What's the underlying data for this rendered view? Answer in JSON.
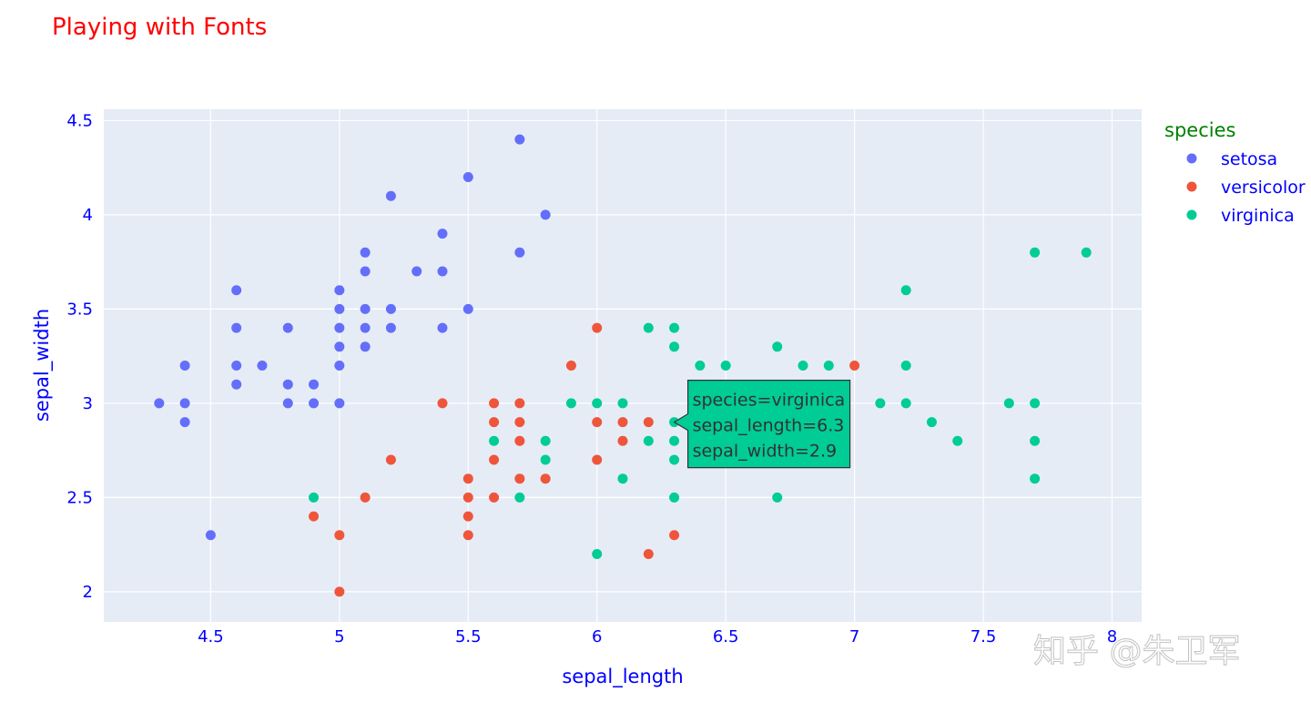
{
  "chart_data": {
    "type": "scatter",
    "title": "Playing with Fonts",
    "xlabel": "sepal_length",
    "ylabel": "sepal_width",
    "xlim": [
      4.085,
      8.115
    ],
    "ylim": [
      1.84,
      4.56
    ],
    "x_ticks": [
      "4.5",
      "5",
      "5.5",
      "6",
      "6.5",
      "7",
      "7.5",
      "8"
    ],
    "y_ticks": [
      "2",
      "2.5",
      "3",
      "3.5",
      "4",
      "4.5"
    ],
    "grid": true,
    "legend_title": "species",
    "legend_position": "right",
    "colors": {
      "title": "#ff0000",
      "axes": "#0000ff",
      "legend_title": "#008000",
      "legend_items": "#0000ff",
      "plot_bg": "#e5ecf6",
      "grid": "#ffffff"
    },
    "series": [
      {
        "name": "setosa",
        "color": "#636efa",
        "points": [
          [
            4.3,
            3.0
          ],
          [
            4.4,
            3.2
          ],
          [
            4.4,
            3.0
          ],
          [
            4.4,
            2.9
          ],
          [
            4.5,
            2.3
          ],
          [
            4.6,
            3.6
          ],
          [
            4.6,
            3.4
          ],
          [
            4.6,
            3.2
          ],
          [
            4.6,
            3.1
          ],
          [
            4.7,
            3.2
          ],
          [
            4.8,
            3.4
          ],
          [
            4.8,
            3.1
          ],
          [
            4.8,
            3.0
          ],
          [
            4.9,
            3.1
          ],
          [
            4.9,
            3.0
          ],
          [
            5.0,
            3.6
          ],
          [
            5.0,
            3.5
          ],
          [
            5.0,
            3.4
          ],
          [
            5.0,
            3.3
          ],
          [
            5.0,
            3.2
          ],
          [
            5.0,
            3.0
          ],
          [
            5.1,
            3.8
          ],
          [
            5.1,
            3.7
          ],
          [
            5.1,
            3.5
          ],
          [
            5.1,
            3.4
          ],
          [
            5.1,
            3.3
          ],
          [
            5.2,
            4.1
          ],
          [
            5.2,
            3.5
          ],
          [
            5.2,
            3.4
          ],
          [
            5.3,
            3.7
          ],
          [
            5.4,
            3.9
          ],
          [
            5.4,
            3.7
          ],
          [
            5.4,
            3.4
          ],
          [
            5.5,
            4.2
          ],
          [
            5.5,
            3.5
          ],
          [
            5.7,
            4.4
          ],
          [
            5.7,
            3.8
          ],
          [
            5.8,
            4.0
          ]
        ]
      },
      {
        "name": "versicolor",
        "color": "#ef553b",
        "points": [
          [
            4.9,
            2.4
          ],
          [
            5.0,
            2.3
          ],
          [
            5.0,
            2.0
          ],
          [
            5.1,
            2.5
          ],
          [
            5.2,
            2.7
          ],
          [
            5.4,
            3.0
          ],
          [
            5.5,
            2.6
          ],
          [
            5.5,
            2.5
          ],
          [
            5.5,
            2.4
          ],
          [
            5.5,
            2.3
          ],
          [
            5.6,
            3.0
          ],
          [
            5.6,
            2.9
          ],
          [
            5.6,
            2.7
          ],
          [
            5.6,
            2.5
          ],
          [
            5.7,
            3.0
          ],
          [
            5.7,
            2.9
          ],
          [
            5.7,
            2.8
          ],
          [
            5.7,
            2.6
          ],
          [
            5.8,
            2.6
          ],
          [
            5.9,
            3.2
          ],
          [
            6.0,
            3.4
          ],
          [
            6.0,
            2.9
          ],
          [
            6.0,
            2.7
          ],
          [
            6.1,
            2.9
          ],
          [
            6.1,
            2.8
          ],
          [
            6.2,
            2.9
          ],
          [
            6.2,
            2.2
          ],
          [
            6.3,
            2.3
          ],
          [
            7.0,
            3.2
          ]
        ]
      },
      {
        "name": "virginica",
        "color": "#00cc96",
        "points": [
          [
            4.9,
            2.5
          ],
          [
            5.6,
            2.8
          ],
          [
            5.7,
            2.5
          ],
          [
            5.8,
            2.8
          ],
          [
            5.8,
            2.7
          ],
          [
            5.9,
            3.0
          ],
          [
            6.0,
            3.0
          ],
          [
            6.0,
            2.2
          ],
          [
            6.1,
            3.0
          ],
          [
            6.1,
            2.6
          ],
          [
            6.2,
            3.4
          ],
          [
            6.2,
            2.8
          ],
          [
            6.3,
            3.4
          ],
          [
            6.3,
            3.3
          ],
          [
            6.3,
            2.9
          ],
          [
            6.3,
            2.8
          ],
          [
            6.3,
            2.7
          ],
          [
            6.3,
            2.5
          ],
          [
            6.4,
            3.2
          ],
          [
            6.5,
            3.2
          ],
          [
            6.7,
            3.3
          ],
          [
            6.7,
            2.5
          ],
          [
            6.8,
            3.2
          ],
          [
            6.9,
            3.2
          ],
          [
            7.1,
            3.0
          ],
          [
            7.2,
            3.6
          ],
          [
            7.2,
            3.2
          ],
          [
            7.2,
            3.0
          ],
          [
            7.3,
            2.9
          ],
          [
            7.4,
            2.8
          ],
          [
            7.6,
            3.0
          ],
          [
            7.7,
            3.8
          ],
          [
            7.7,
            3.0
          ],
          [
            7.7,
            2.8
          ],
          [
            7.7,
            2.6
          ],
          [
            7.9,
            3.8
          ]
        ]
      }
    ],
    "hover": {
      "series": "virginica",
      "x": 6.3,
      "y": 2.9,
      "lines": [
        "species=virginica",
        "sepal_length=6.3",
        "sepal_width=2.9"
      ]
    }
  },
  "watermark": "知乎 @朱卫军"
}
